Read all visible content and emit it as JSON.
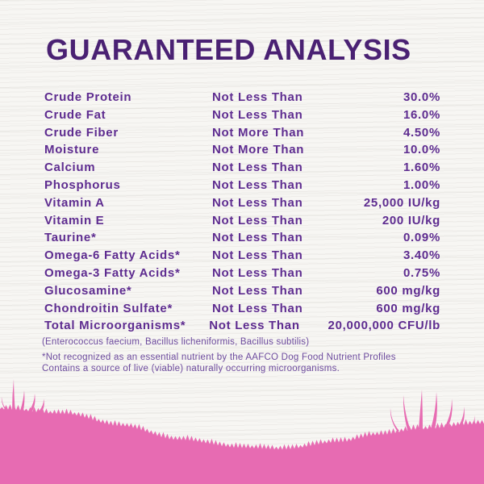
{
  "title": "GUARANTEED ANALYSIS",
  "colors": {
    "background": "#f7f6f3",
    "title_purple": "#4a2173",
    "table_text_purple": "#5e2c90",
    "footnote_purple": "#6d4b9e",
    "grass_pink": "#e76bb2"
  },
  "analysis_table": {
    "rows": [
      {
        "nutrient": "Crude Protein",
        "condition": "Not Less Than",
        "value": "30.0%"
      },
      {
        "nutrient": "Crude Fat",
        "condition": "Not Less Than",
        "value": "16.0%"
      },
      {
        "nutrient": "Crude Fiber",
        "condition": "Not More Than",
        "value": "4.50%"
      },
      {
        "nutrient": "Moisture",
        "condition": "Not More Than",
        "value": "10.0%"
      },
      {
        "nutrient": "Calcium",
        "condition": "Not Less Than",
        "value": "1.60%"
      },
      {
        "nutrient": "Phosphorus",
        "condition": "Not Less Than",
        "value": "1.00%"
      },
      {
        "nutrient": "Vitamin A",
        "condition": "Not Less Than",
        "value": "25,000 IU/kg"
      },
      {
        "nutrient": "Vitamin E",
        "condition": "Not Less Than",
        "value": "200 IU/kg"
      },
      {
        "nutrient": "Taurine*",
        "condition": "Not Less Than",
        "value": "0.09%"
      },
      {
        "nutrient": "Omega-6 Fatty Acids*",
        "condition": "Not Less Than",
        "value": "3.40%"
      },
      {
        "nutrient": "Omega-3 Fatty Acids*",
        "condition": "Not Less Than",
        "value": "0.75%"
      },
      {
        "nutrient": "Glucosamine*",
        "condition": "Not Less Than",
        "value": "600 mg/kg"
      },
      {
        "nutrient": "Chondroitin Sulfate*",
        "condition": "Not Less Than",
        "value": "600 mg/kg"
      },
      {
        "nutrient": "Total Microorganisms*",
        "condition": "Not Less Than",
        "value": "20,000,000 CFU/lb"
      }
    ]
  },
  "footnotes": {
    "species": "(Enterococcus faecium, Bacillus licheniformis, Bacillus subtilis)",
    "note_line1": "*Not recognized as an essential nutrient by the AAFCO Dog Food Nutrient Profiles",
    "note_line2": "Contains a source of live (viable) naturally occurring microorganisms."
  }
}
